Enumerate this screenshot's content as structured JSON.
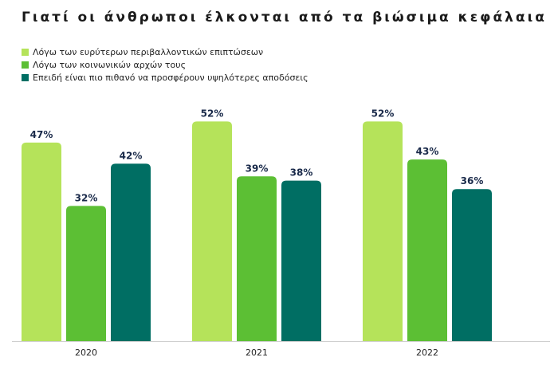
{
  "title": "Γιατί οι άνθρωποι έλκονται από τα βιώσιμα κεφάλαια",
  "chart_data": {
    "type": "bar",
    "categories": [
      "2020",
      "2021",
      "2022"
    ],
    "series": [
      {
        "name": "Λόγω των ευρύτερων περιβαλλοντικών επιπτώσεων",
        "values": [
          47,
          52,
          52
        ],
        "labels": [
          "47%",
          "52%",
          "52%"
        ],
        "color": "#b5e35a"
      },
      {
        "name": "Λόγω των κοινωνικών αρχών τους",
        "values": [
          32,
          39,
          43
        ],
        "labels": [
          "32%",
          "39%",
          "43%"
        ],
        "color": "#5cbf34"
      },
      {
        "name": "Επειδή είναι πιο πιθανό να προσφέρουν υψηλότερες αποδόσεις",
        "values": [
          42,
          38,
          36
        ],
        "labels": [
          "42%",
          "38%",
          "36%"
        ],
        "color": "#006e63"
      }
    ],
    "ylim": [
      0,
      100
    ],
    "legend_position": "top-left",
    "grid": false
  }
}
